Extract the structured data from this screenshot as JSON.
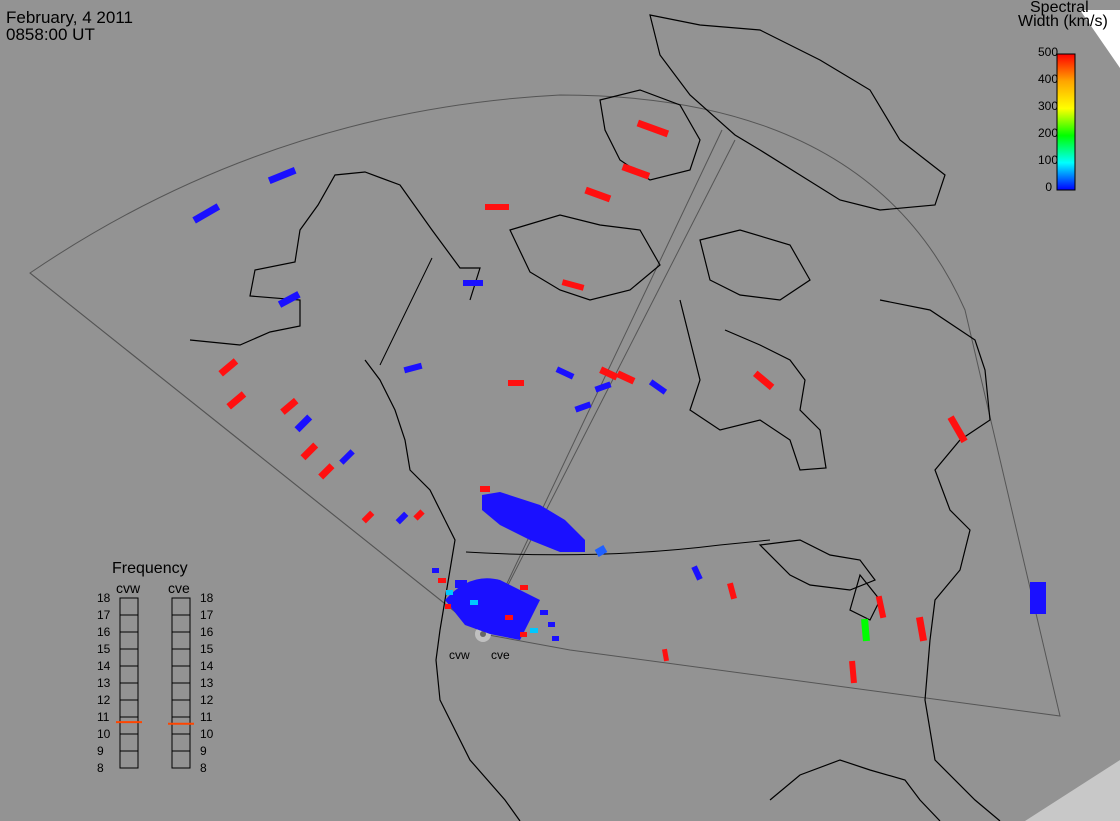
{
  "header": {
    "date": "February, 4 2011",
    "time": "0858:00 UT"
  },
  "colorbar": {
    "title_line1": "Spectral",
    "title_line2": "Width (km/s)",
    "ticks": [
      "500",
      "400",
      "300",
      "200",
      "100",
      "0"
    ],
    "min": 0,
    "max": 500,
    "colors": [
      "#ff0000",
      "#ffa500",
      "#ffff00",
      "#00ff00",
      "#00ffff",
      "#0000ff"
    ]
  },
  "frequency_panel": {
    "title": "Frequency",
    "radar_labels": [
      "cvw",
      "cve"
    ],
    "ticks": [
      "18",
      "17",
      "16",
      "15",
      "14",
      "13",
      "12",
      "11",
      "10",
      "9",
      "8"
    ],
    "cvw_frequency_mhz": 10.7,
    "cve_frequency_mhz": 10.6,
    "marker_color": "#ff4500"
  },
  "radars": {
    "west_label": "cvw",
    "east_label": "cve"
  },
  "colors": {
    "background": "#939393",
    "coast": "#000000",
    "fov": "#555555",
    "low_width": "#1a10ff",
    "high_width": "#ff1010"
  }
}
